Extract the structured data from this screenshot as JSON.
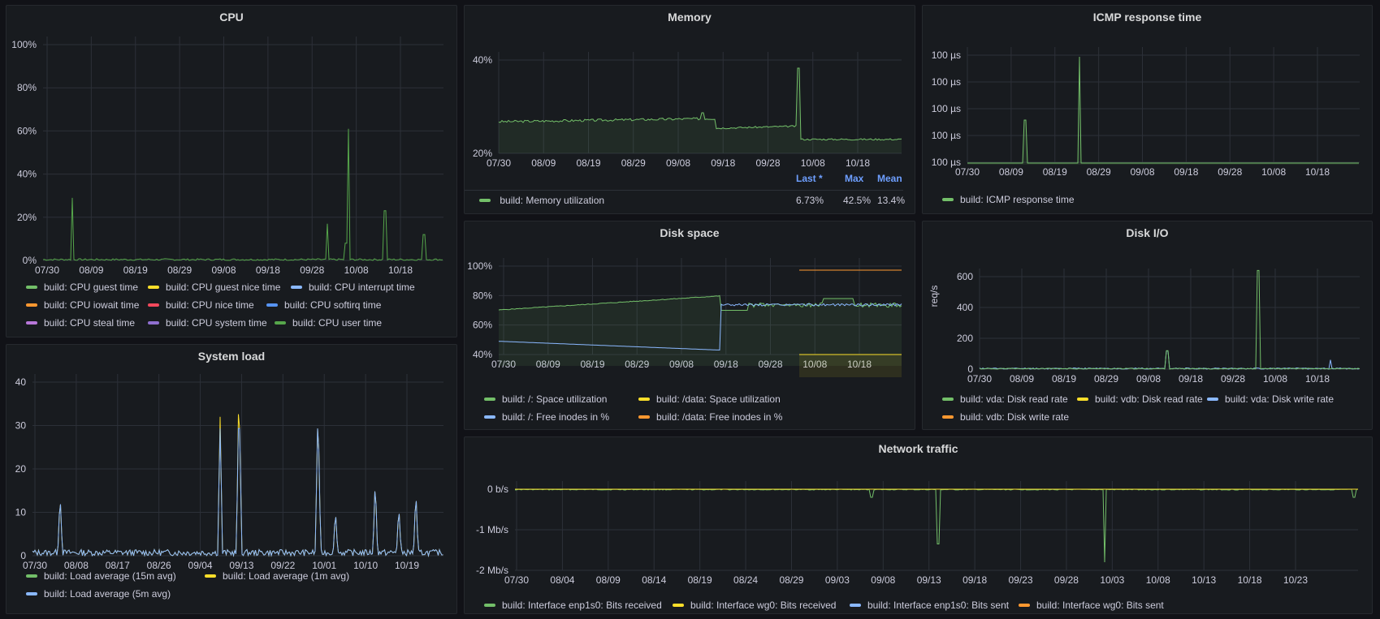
{
  "colors": {
    "green": "#73bf69",
    "yellow": "#fade2a",
    "blue": "#8ab8ff",
    "orange": "#ff9830",
    "red": "#f2495c",
    "softblue": "#5794f2",
    "purple": "#b877d9",
    "violet": "#8f6fd0",
    "darkgreen": "#56a64b"
  },
  "panels": {
    "cpu": {
      "title": "CPU",
      "yticks": [
        "100%",
        "80%",
        "60%",
        "40%",
        "20%",
        "0%"
      ],
      "xticks": [
        "07/30",
        "08/09",
        "08/19",
        "08/29",
        "09/08",
        "09/18",
        "09/28",
        "10/08",
        "10/18"
      ],
      "legend": [
        {
          "label": "build: CPU guest time",
          "color": "#73bf69"
        },
        {
          "label": "build: CPU guest nice time",
          "color": "#fade2a"
        },
        {
          "label": "build: CPU interrupt time",
          "color": "#8ab8ff"
        },
        {
          "label": "build: CPU iowait time",
          "color": "#ff9830"
        },
        {
          "label": "build: CPU nice time",
          "color": "#f2495c"
        },
        {
          "label": "build: CPU softirq time",
          "color": "#5794f2"
        },
        {
          "label": "build: CPU steal time",
          "color": "#b877d9"
        },
        {
          "label": "build: CPU system time",
          "color": "#8f6fd0"
        },
        {
          "label": "build: CPU user time",
          "color": "#56a64b"
        }
      ]
    },
    "memory": {
      "title": "Memory",
      "yticks": [
        "40%",
        "20%"
      ],
      "xticks": [
        "07/30",
        "08/09",
        "08/19",
        "08/29",
        "09/08",
        "09/18",
        "09/28",
        "10/08",
        "10/18"
      ],
      "table_headers": [
        "Last *",
        "Max",
        "Mean"
      ],
      "legend": [
        {
          "label": "build: Memory utilization",
          "color": "#73bf69",
          "last": "6.73%",
          "max": "42.5%",
          "mean": "13.4%"
        }
      ]
    },
    "icmp": {
      "title": "ICMP response time",
      "yticks": [
        "100 µs",
        "100 µs",
        "100 µs",
        "100 µs",
        "100 µs"
      ],
      "xticks": [
        "07/30",
        "08/09",
        "08/19",
        "08/29",
        "09/08",
        "09/18",
        "09/28",
        "10/08",
        "10/18"
      ],
      "legend": [
        {
          "label": "build: ICMP response time",
          "color": "#73bf69"
        }
      ]
    },
    "load": {
      "title": "System load",
      "yticks": [
        "40",
        "30",
        "20",
        "10",
        "0"
      ],
      "xticks": [
        "07/30",
        "08/08",
        "08/17",
        "08/26",
        "09/04",
        "09/13",
        "09/22",
        "10/01",
        "10/10",
        "10/19"
      ],
      "legend": [
        {
          "label": "build: Load average (15m avg)",
          "color": "#73bf69"
        },
        {
          "label": "build: Load average (1m avg)",
          "color": "#fade2a"
        },
        {
          "label": "build: Load average (5m avg)",
          "color": "#8ab8ff"
        }
      ]
    },
    "disk": {
      "title": "Disk space",
      "yticks": [
        "100%",
        "80%",
        "60%",
        "40%"
      ],
      "xticks": [
        "07/30",
        "08/09",
        "08/19",
        "08/29",
        "09/08",
        "09/18",
        "09/28",
        "10/08",
        "10/18"
      ],
      "legend": [
        {
          "label": "build: /: Space utilization",
          "color": "#73bf69"
        },
        {
          "label": "build: /data: Space utilization",
          "color": "#fade2a"
        },
        {
          "label": "build: /: Free inodes in %",
          "color": "#8ab8ff"
        },
        {
          "label": "build: /data: Free inodes in %",
          "color": "#ff9830"
        }
      ]
    },
    "diskio": {
      "title": "Disk I/O",
      "ylabel": "req/s",
      "yticks": [
        "600",
        "400",
        "200",
        "0"
      ],
      "xticks": [
        "07/30",
        "08/09",
        "08/19",
        "08/29",
        "09/08",
        "09/18",
        "09/28",
        "10/08",
        "10/18"
      ],
      "legend": [
        {
          "label": "build: vda: Disk read rate",
          "color": "#73bf69"
        },
        {
          "label": "build: vdb: Disk read rate",
          "color": "#fade2a"
        },
        {
          "label": "build: vda: Disk write rate",
          "color": "#8ab8ff"
        },
        {
          "label": "build: vdb: Disk write rate",
          "color": "#ff9830"
        }
      ]
    },
    "net": {
      "title": "Network traffic",
      "yticks": [
        "0 b/s",
        "-1 Mb/s",
        "-2 Mb/s"
      ],
      "xticks": [
        "07/30",
        "08/04",
        "08/09",
        "08/14",
        "08/19",
        "08/24",
        "08/29",
        "09/03",
        "09/08",
        "09/13",
        "09/18",
        "09/23",
        "09/28",
        "10/03",
        "10/08",
        "10/13",
        "10/18",
        "10/23"
      ],
      "legend": [
        {
          "label": "build: Interface enp1s0: Bits received",
          "color": "#73bf69"
        },
        {
          "label": "build: Interface wg0: Bits received",
          "color": "#fade2a"
        },
        {
          "label": "build: Interface enp1s0: Bits sent",
          "color": "#8ab8ff"
        },
        {
          "label": "build: Interface wg0: Bits sent",
          "color": "#ff9830"
        }
      ]
    }
  }
}
